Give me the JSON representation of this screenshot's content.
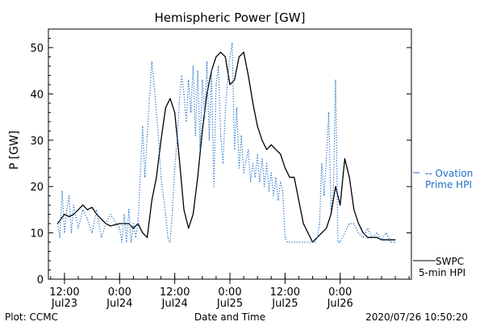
{
  "footer": {
    "left": "Plot: CCMC",
    "center": "Date and Time",
    "right": "2020/07/26 10:50:20"
  },
  "legend": {
    "ovation_line1": "-- Ovation",
    "ovation_line2": "Prime HPI",
    "swpc_line1": "SWPC",
    "swpc_line2": "5-min HPI"
  },
  "colors": {
    "swpc": "#000000",
    "ovation": "#1f6fc9",
    "axis": "#000000",
    "background": "#ffffff"
  },
  "chart_data": {
    "type": "line",
    "title": "Hemispheric Power [GW]",
    "ylabel": "P [GW]",
    "xlabel": "Date and Time",
    "ylim": [
      0,
      54
    ],
    "xlim": [
      "2020-07-23 08:30",
      "2020-07-26 15:30"
    ],
    "yticks": [
      0,
      10,
      20,
      30,
      40,
      50
    ],
    "xticks": [
      {
        "x": "2020-07-23 12:00",
        "label1": "12:00",
        "label2": "Jul23"
      },
      {
        "x": "2020-07-24 00:00",
        "label1": "0:00",
        "label2": "Jul24"
      },
      {
        "x": "2020-07-24 12:00",
        "label1": "12:00",
        "label2": "Jul24"
      },
      {
        "x": "2020-07-25 00:00",
        "label1": "0:00",
        "label2": "Jul25"
      },
      {
        "x": "2020-07-25 12:00",
        "label1": "12:00",
        "label2": "Jul25"
      },
      {
        "x": "2020-07-26 00:00",
        "label1": "0:00",
        "label2": "Jul26"
      }
    ],
    "grid": false,
    "legend_position": "right",
    "series": [
      {
        "name": "SWPC 5-min HPI",
        "style": "solid",
        "color": "#000000",
        "points": [
          [
            "2020-07-23 10:30",
            12
          ],
          [
            "2020-07-23 12:00",
            14
          ],
          [
            "2020-07-23 13:00",
            13.5
          ],
          [
            "2020-07-23 14:00",
            14
          ],
          [
            "2020-07-23 15:00",
            15
          ],
          [
            "2020-07-23 16:00",
            16
          ],
          [
            "2020-07-23 17:00",
            15
          ],
          [
            "2020-07-23 18:00",
            15.5
          ],
          [
            "2020-07-23 19:00",
            14
          ],
          [
            "2020-07-23 20:00",
            13
          ],
          [
            "2020-07-23 21:00",
            12
          ],
          [
            "2020-07-23 22:00",
            11.5
          ],
          [
            "2020-07-24 00:00",
            12
          ],
          [
            "2020-07-24 01:00",
            12
          ],
          [
            "2020-07-24 02:00",
            12
          ],
          [
            "2020-07-24 03:00",
            11
          ],
          [
            "2020-07-24 04:00",
            12
          ],
          [
            "2020-07-24 05:00",
            10
          ],
          [
            "2020-07-24 06:00",
            9
          ],
          [
            "2020-07-24 07:00",
            17
          ],
          [
            "2020-07-24 08:00",
            22
          ],
          [
            "2020-07-24 09:00",
            30
          ],
          [
            "2020-07-24 10:00",
            37
          ],
          [
            "2020-07-24 11:00",
            39
          ],
          [
            "2020-07-24 12:00",
            36
          ],
          [
            "2020-07-24 13:00",
            26
          ],
          [
            "2020-07-24 14:00",
            15
          ],
          [
            "2020-07-24 15:00",
            11
          ],
          [
            "2020-07-24 16:00",
            14
          ],
          [
            "2020-07-24 17:00",
            22
          ],
          [
            "2020-07-24 18:00",
            32
          ],
          [
            "2020-07-24 19:00",
            40
          ],
          [
            "2020-07-24 20:00",
            45
          ],
          [
            "2020-07-24 21:00",
            48
          ],
          [
            "2020-07-24 22:00",
            49
          ],
          [
            "2020-07-24 23:00",
            48
          ],
          [
            "2020-07-25 00:00",
            42
          ],
          [
            "2020-07-25 01:00",
            43
          ],
          [
            "2020-07-25 02:00",
            48
          ],
          [
            "2020-07-25 03:00",
            49
          ],
          [
            "2020-07-25 04:00",
            44
          ],
          [
            "2020-07-25 05:00",
            38
          ],
          [
            "2020-07-25 06:00",
            33
          ],
          [
            "2020-07-25 07:00",
            30
          ],
          [
            "2020-07-25 08:00",
            28
          ],
          [
            "2020-07-25 09:00",
            29
          ],
          [
            "2020-07-25 10:00",
            28
          ],
          [
            "2020-07-25 11:00",
            27
          ],
          [
            "2020-07-25 12:00",
            24
          ],
          [
            "2020-07-25 13:00",
            22
          ],
          [
            "2020-07-25 14:00",
            22
          ],
          [
            "2020-07-25 15:00",
            17
          ],
          [
            "2020-07-25 16:00",
            12
          ],
          [
            "2020-07-25 17:00",
            10
          ],
          [
            "2020-07-25 18:00",
            8
          ],
          [
            "2020-07-25 19:00",
            9
          ],
          [
            "2020-07-25 20:00",
            10
          ],
          [
            "2020-07-25 21:00",
            11
          ],
          [
            "2020-07-25 22:00",
            14
          ],
          [
            "2020-07-25 23:00",
            20
          ],
          [
            "2020-07-26 00:00",
            16
          ],
          [
            "2020-07-26 01:00",
            26
          ],
          [
            "2020-07-26 02:00",
            22
          ],
          [
            "2020-07-26 03:00",
            15
          ],
          [
            "2020-07-26 04:00",
            12
          ],
          [
            "2020-07-26 05:00",
            10
          ],
          [
            "2020-07-26 06:00",
            9
          ],
          [
            "2020-07-26 07:00",
            9
          ],
          [
            "2020-07-26 08:00",
            9
          ],
          [
            "2020-07-26 09:00",
            8.5
          ],
          [
            "2020-07-26 10:00",
            8.5
          ],
          [
            "2020-07-26 11:00",
            8.5
          ],
          [
            "2020-07-26 12:00",
            8.5
          ]
        ]
      },
      {
        "name": "Ovation Prime HPI",
        "style": "dotted",
        "color": "#1f6fc9",
        "points": [
          [
            "2020-07-23 10:30",
            12
          ],
          [
            "2020-07-23 11:00",
            9
          ],
          [
            "2020-07-23 11:30",
            19
          ],
          [
            "2020-07-23 12:00",
            10
          ],
          [
            "2020-07-23 12:30",
            15
          ],
          [
            "2020-07-23 13:00",
            18
          ],
          [
            "2020-07-23 13:30",
            10
          ],
          [
            "2020-07-23 14:00",
            16
          ],
          [
            "2020-07-23 15:00",
            11
          ],
          [
            "2020-07-23 16:00",
            15
          ],
          [
            "2020-07-23 17:00",
            13
          ],
          [
            "2020-07-23 18:00",
            10
          ],
          [
            "2020-07-23 19:00",
            15
          ],
          [
            "2020-07-23 20:00",
            9
          ],
          [
            "2020-07-23 21:00",
            12
          ],
          [
            "2020-07-23 22:00",
            14
          ],
          [
            "2020-07-24 00:00",
            11
          ],
          [
            "2020-07-24 00:30",
            8
          ],
          [
            "2020-07-24 01:00",
            14
          ],
          [
            "2020-07-24 01:30",
            8
          ],
          [
            "2020-07-24 02:00",
            15
          ],
          [
            "2020-07-24 02:30",
            8
          ],
          [
            "2020-07-24 03:00",
            12
          ],
          [
            "2020-07-24 03:30",
            9
          ],
          [
            "2020-07-24 04:00",
            12
          ],
          [
            "2020-07-24 05:00",
            33
          ],
          [
            "2020-07-24 05:30",
            22
          ],
          [
            "2020-07-24 06:00",
            31
          ],
          [
            "2020-07-24 06:30",
            39
          ],
          [
            "2020-07-24 07:00",
            47
          ],
          [
            "2020-07-24 07:30",
            42
          ],
          [
            "2020-07-24 08:00",
            36
          ],
          [
            "2020-07-24 08:30",
            30
          ],
          [
            "2020-07-24 09:00",
            22
          ],
          [
            "2020-07-24 09:30",
            18
          ],
          [
            "2020-07-24 10:00",
            14
          ],
          [
            "2020-07-24 10:30",
            9
          ],
          [
            "2020-07-24 11:00",
            8
          ],
          [
            "2020-07-24 11:30",
            15
          ],
          [
            "2020-07-24 12:00",
            24
          ],
          [
            "2020-07-24 12:30",
            30
          ],
          [
            "2020-07-24 13:00",
            38
          ],
          [
            "2020-07-24 13:30",
            44
          ],
          [
            "2020-07-24 14:00",
            40
          ],
          [
            "2020-07-24 14:30",
            34
          ],
          [
            "2020-07-24 15:00",
            43
          ],
          [
            "2020-07-24 15:30",
            36
          ],
          [
            "2020-07-24 16:00",
            46
          ],
          [
            "2020-07-24 16:30",
            31
          ],
          [
            "2020-07-24 17:00",
            45
          ],
          [
            "2020-07-24 17:30",
            28
          ],
          [
            "2020-07-24 18:00",
            43
          ],
          [
            "2020-07-24 18:30",
            35
          ],
          [
            "2020-07-24 19:00",
            47
          ],
          [
            "2020-07-24 19:30",
            30
          ],
          [
            "2020-07-24 20:00",
            45
          ],
          [
            "2020-07-24 20:30",
            20
          ],
          [
            "2020-07-24 21:00",
            42
          ],
          [
            "2020-07-24 21:30",
            46
          ],
          [
            "2020-07-24 22:00",
            31
          ],
          [
            "2020-07-24 22:30",
            25
          ],
          [
            "2020-07-24 23:00",
            36
          ],
          [
            "2020-07-24 23:30",
            43
          ],
          [
            "2020-07-25 00:00",
            48
          ],
          [
            "2020-07-25 00:30",
            51
          ],
          [
            "2020-07-25 01:00",
            28
          ],
          [
            "2020-07-25 01:30",
            37
          ],
          [
            "2020-07-25 02:00",
            24
          ],
          [
            "2020-07-25 02:30",
            31
          ],
          [
            "2020-07-25 03:00",
            23
          ],
          [
            "2020-07-25 04:00",
            28
          ],
          [
            "2020-07-25 04:30",
            21
          ],
          [
            "2020-07-25 05:00",
            25
          ],
          [
            "2020-07-25 05:30",
            22
          ],
          [
            "2020-07-25 06:00",
            27
          ],
          [
            "2020-07-25 06:30",
            21
          ],
          [
            "2020-07-25 07:00",
            26
          ],
          [
            "2020-07-25 07:30",
            20
          ],
          [
            "2020-07-25 08:00",
            25
          ],
          [
            "2020-07-25 08:30",
            19
          ],
          [
            "2020-07-25 09:00",
            23
          ],
          [
            "2020-07-25 09:30",
            18
          ],
          [
            "2020-07-25 10:00",
            22
          ],
          [
            "2020-07-25 10:30",
            17
          ],
          [
            "2020-07-25 11:00",
            21
          ],
          [
            "2020-07-25 11:30",
            19
          ],
          [
            "2020-07-25 12:00",
            9
          ],
          [
            "2020-07-25 12:30",
            8
          ],
          [
            "2020-07-25 18:30",
            8
          ],
          [
            "2020-07-25 19:00",
            9
          ],
          [
            "2020-07-25 19:30",
            12
          ],
          [
            "2020-07-25 20:00",
            25
          ],
          [
            "2020-07-25 20:30",
            18
          ],
          [
            "2020-07-25 21:00",
            26
          ],
          [
            "2020-07-25 21:30",
            36
          ],
          [
            "2020-07-25 22:00",
            15
          ],
          [
            "2020-07-25 22:30",
            19
          ],
          [
            "2020-07-25 23:00",
            43
          ],
          [
            "2020-07-25 23:30",
            8
          ],
          [
            "2020-07-26 00:00",
            8
          ],
          [
            "2020-07-26 02:00",
            12
          ],
          [
            "2020-07-26 03:00",
            12
          ],
          [
            "2020-07-26 04:00",
            10
          ],
          [
            "2020-07-26 05:00",
            9
          ],
          [
            "2020-07-26 06:00",
            11
          ],
          [
            "2020-07-26 07:00",
            9
          ],
          [
            "2020-07-26 08:00",
            10
          ],
          [
            "2020-07-26 09:00",
            8.5
          ],
          [
            "2020-07-26 10:00",
            10
          ],
          [
            "2020-07-26 11:00",
            8
          ],
          [
            "2020-07-26 12:00",
            8
          ]
        ]
      }
    ]
  }
}
